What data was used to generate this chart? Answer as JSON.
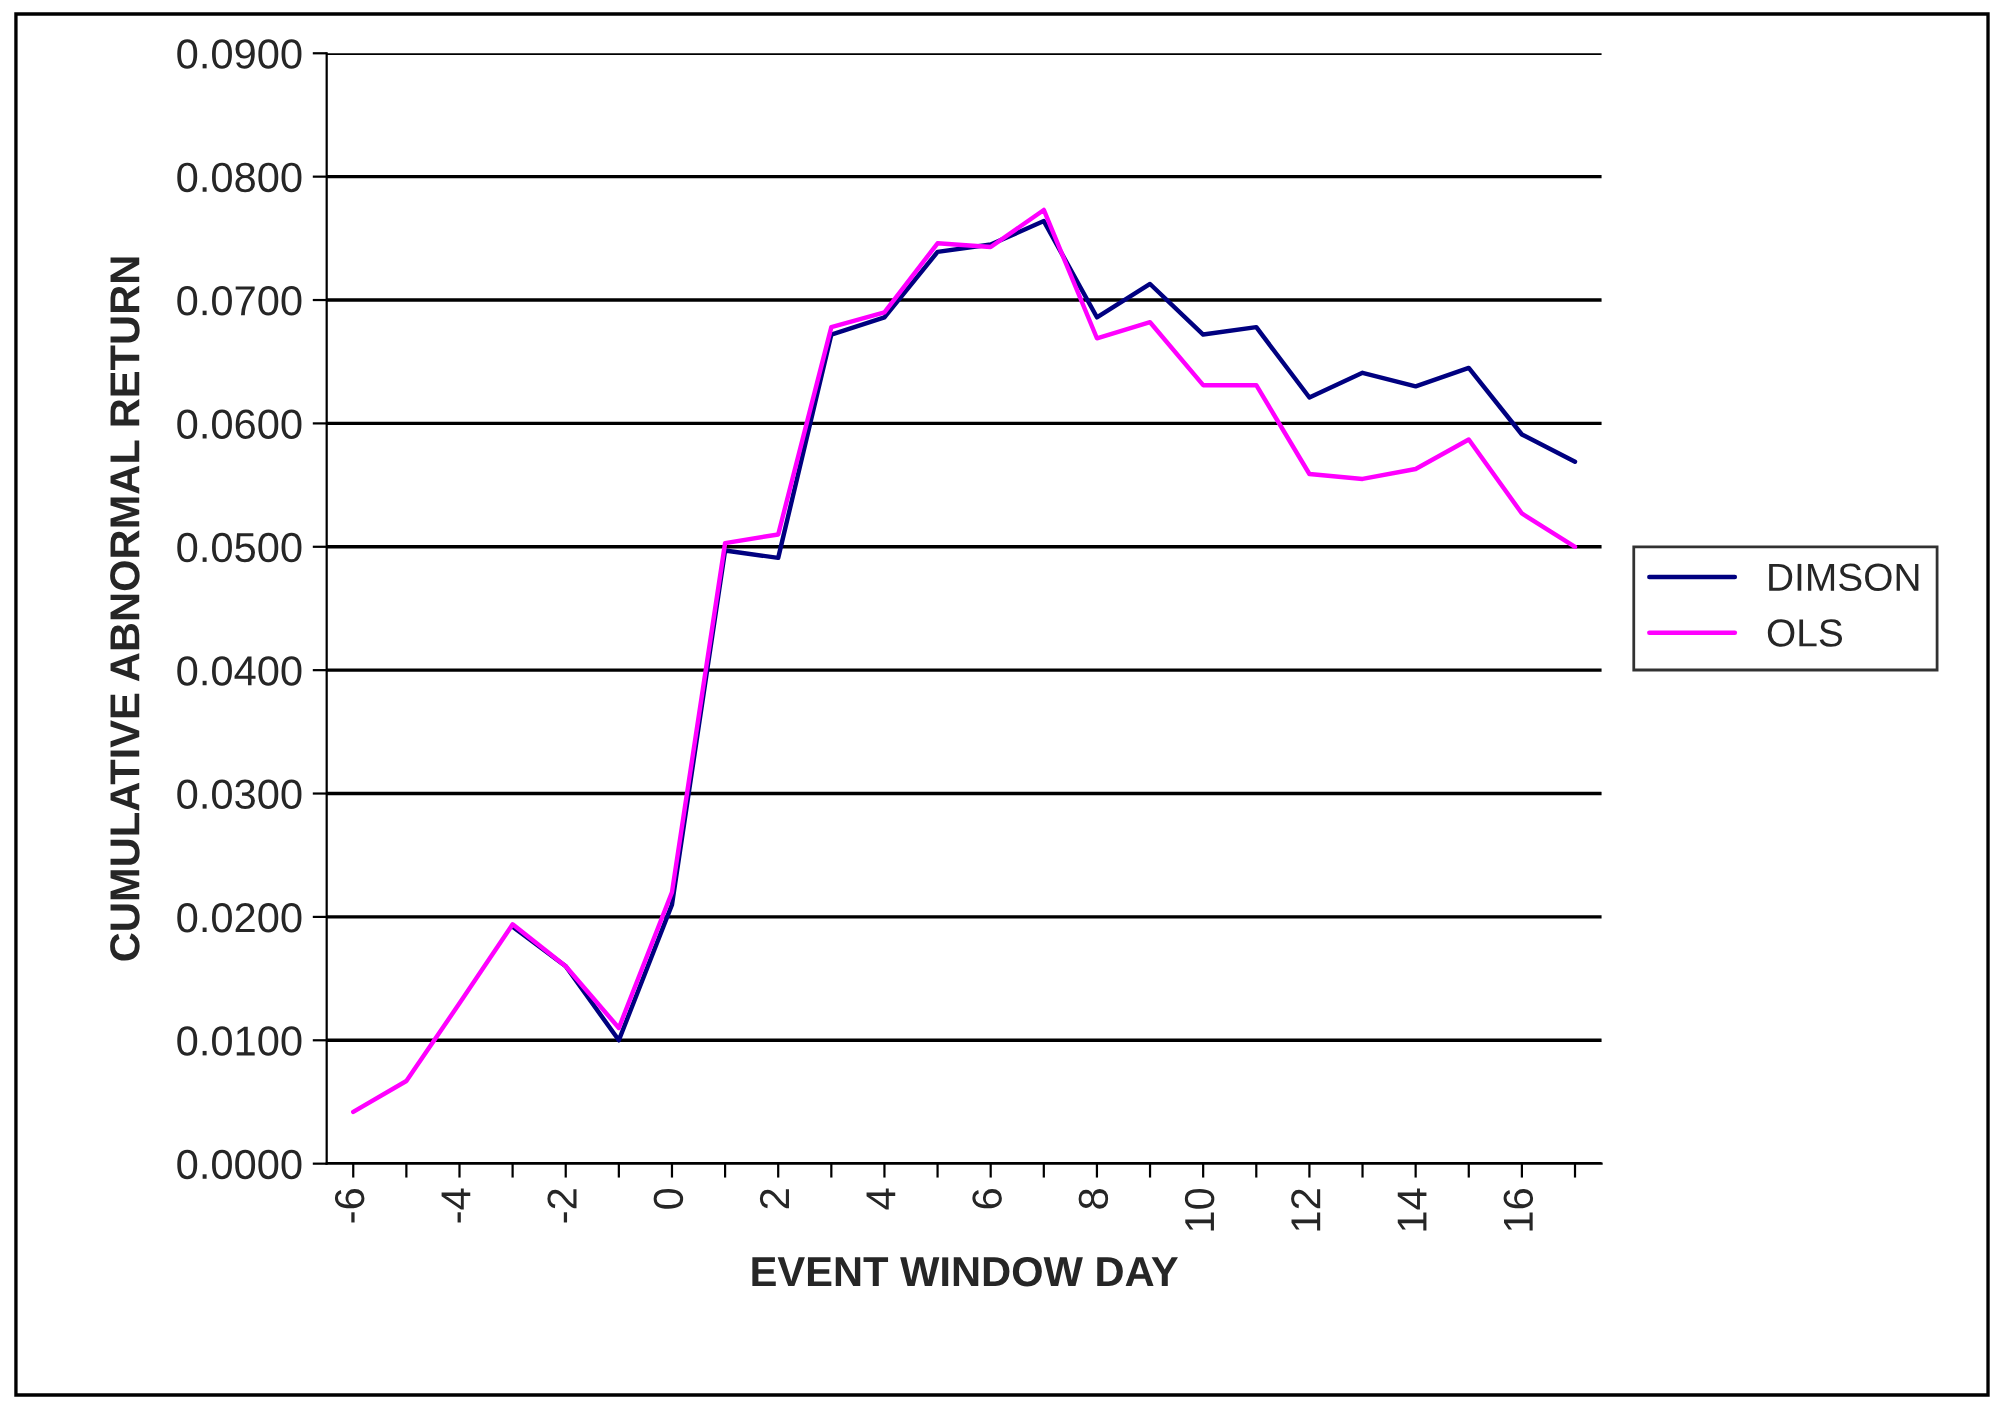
{
  "chart_data": {
    "type": "line",
    "xlabel": "EVENT WINDOW DAY",
    "ylabel": "CUMULATIVE ABNORMAL RETURN",
    "categories": [
      "-6",
      null,
      "-4",
      null,
      "-2",
      null,
      "0",
      null,
      "2",
      null,
      "4",
      null,
      "6",
      null,
      "8",
      null,
      "10",
      null,
      "12",
      null,
      "14",
      null,
      "16",
      null
    ],
    "series": [
      {
        "name": "DIMSON",
        "color": "#000080",
        "values": [
          null,
          null,
          null,
          0.0192,
          0.016,
          0.01,
          0.021,
          0.0497,
          0.0491,
          0.0672,
          0.0686,
          0.0739,
          0.0745,
          0.0764,
          0.0686,
          0.0713,
          0.0672,
          0.0678,
          0.0621,
          0.0641,
          0.063,
          0.0645,
          0.0591,
          0.0569
        ]
      },
      {
        "name": "OLS",
        "color": "#ff00ff",
        "values": [
          0.0042,
          0.0067,
          0.013,
          0.0194,
          0.016,
          0.011,
          0.022,
          0.0503,
          0.051,
          0.0678,
          0.069,
          0.0746,
          0.0743,
          0.0773,
          0.0669,
          0.0682,
          0.0631,
          0.0631,
          0.0559,
          0.0555,
          0.0563,
          0.0587,
          0.0527,
          0.05
        ]
      }
    ],
    "ylim": [
      0,
      0.09
    ],
    "yticks": [
      {
        "value": 0,
        "label": "0.0000"
      },
      {
        "value": 0.01,
        "label": "0.0100"
      },
      {
        "value": 0.02,
        "label": "0.0200"
      },
      {
        "value": 0.03,
        "label": "0.0300"
      },
      {
        "value": 0.04,
        "label": "0.0400"
      },
      {
        "value": 0.05,
        "label": "0.0500"
      },
      {
        "value": 0.06,
        "label": "0.0600"
      },
      {
        "value": 0.07,
        "label": "0.0700"
      },
      {
        "value": 0.08,
        "label": "0.0800"
      },
      {
        "value": 0.09,
        "label": "0.0900"
      }
    ],
    "grid": "y",
    "legend": "right",
    "marker": "none",
    "line_style": "solid"
  }
}
